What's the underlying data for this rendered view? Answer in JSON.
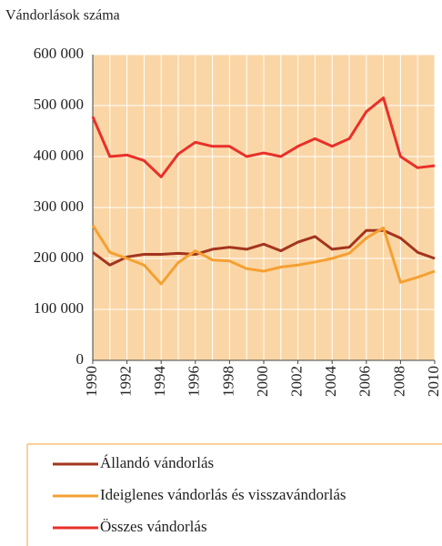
{
  "chart_data": {
    "type": "line",
    "ylabel": "Vándorlások száma",
    "x": [
      1990,
      1991,
      1992,
      1993,
      1994,
      1995,
      1996,
      1997,
      1998,
      1999,
      2000,
      2001,
      2002,
      2003,
      2004,
      2005,
      2006,
      2007,
      2008,
      2009,
      2010
    ],
    "series": [
      {
        "name": "Állandó vándorlás",
        "color": "#a3351e",
        "values": [
          212000,
          187000,
          203000,
          208000,
          208000,
          210000,
          208000,
          218000,
          222000,
          218000,
          228000,
          215000,
          232000,
          243000,
          218000,
          222000,
          255000,
          255000,
          240000,
          212000,
          200000
        ]
      },
      {
        "name": "Ideiglenes vándorlás és visszavándorlás",
        "color": "#f5a032",
        "values": [
          265000,
          212000,
          200000,
          187000,
          150000,
          192000,
          215000,
          197000,
          195000,
          180000,
          175000,
          183000,
          187000,
          193000,
          200000,
          210000,
          240000,
          260000,
          153000,
          163000,
          175000
        ]
      },
      {
        "name": "Összes vándorlás",
        "color": "#e8302a",
        "values": [
          478000,
          400000,
          403000,
          392000,
          360000,
          405000,
          428000,
          420000,
          420000,
          400000,
          407000,
          400000,
          420000,
          435000,
          420000,
          435000,
          488000,
          515000,
          400000,
          378000,
          382000
        ]
      }
    ],
    "xlim": [
      1990,
      2010
    ],
    "xticks": [
      1990,
      1992,
      1994,
      1996,
      1998,
      2000,
      2002,
      2004,
      2006,
      2008,
      2010
    ],
    "ylim": [
      0,
      600000
    ],
    "yticks": [
      0,
      {
        "value": 100000,
        "label": "100 000"
      },
      {
        "value": 200000,
        "label": "200 000"
      },
      {
        "value": 300000,
        "label": "300 000"
      },
      {
        "value": 400000,
        "label": "400 000"
      },
      {
        "value": 500000,
        "label": "500 000"
      },
      {
        "value": 600000,
        "label": "600 000"
      }
    ],
    "grid": true,
    "background": "#fad6a6"
  }
}
